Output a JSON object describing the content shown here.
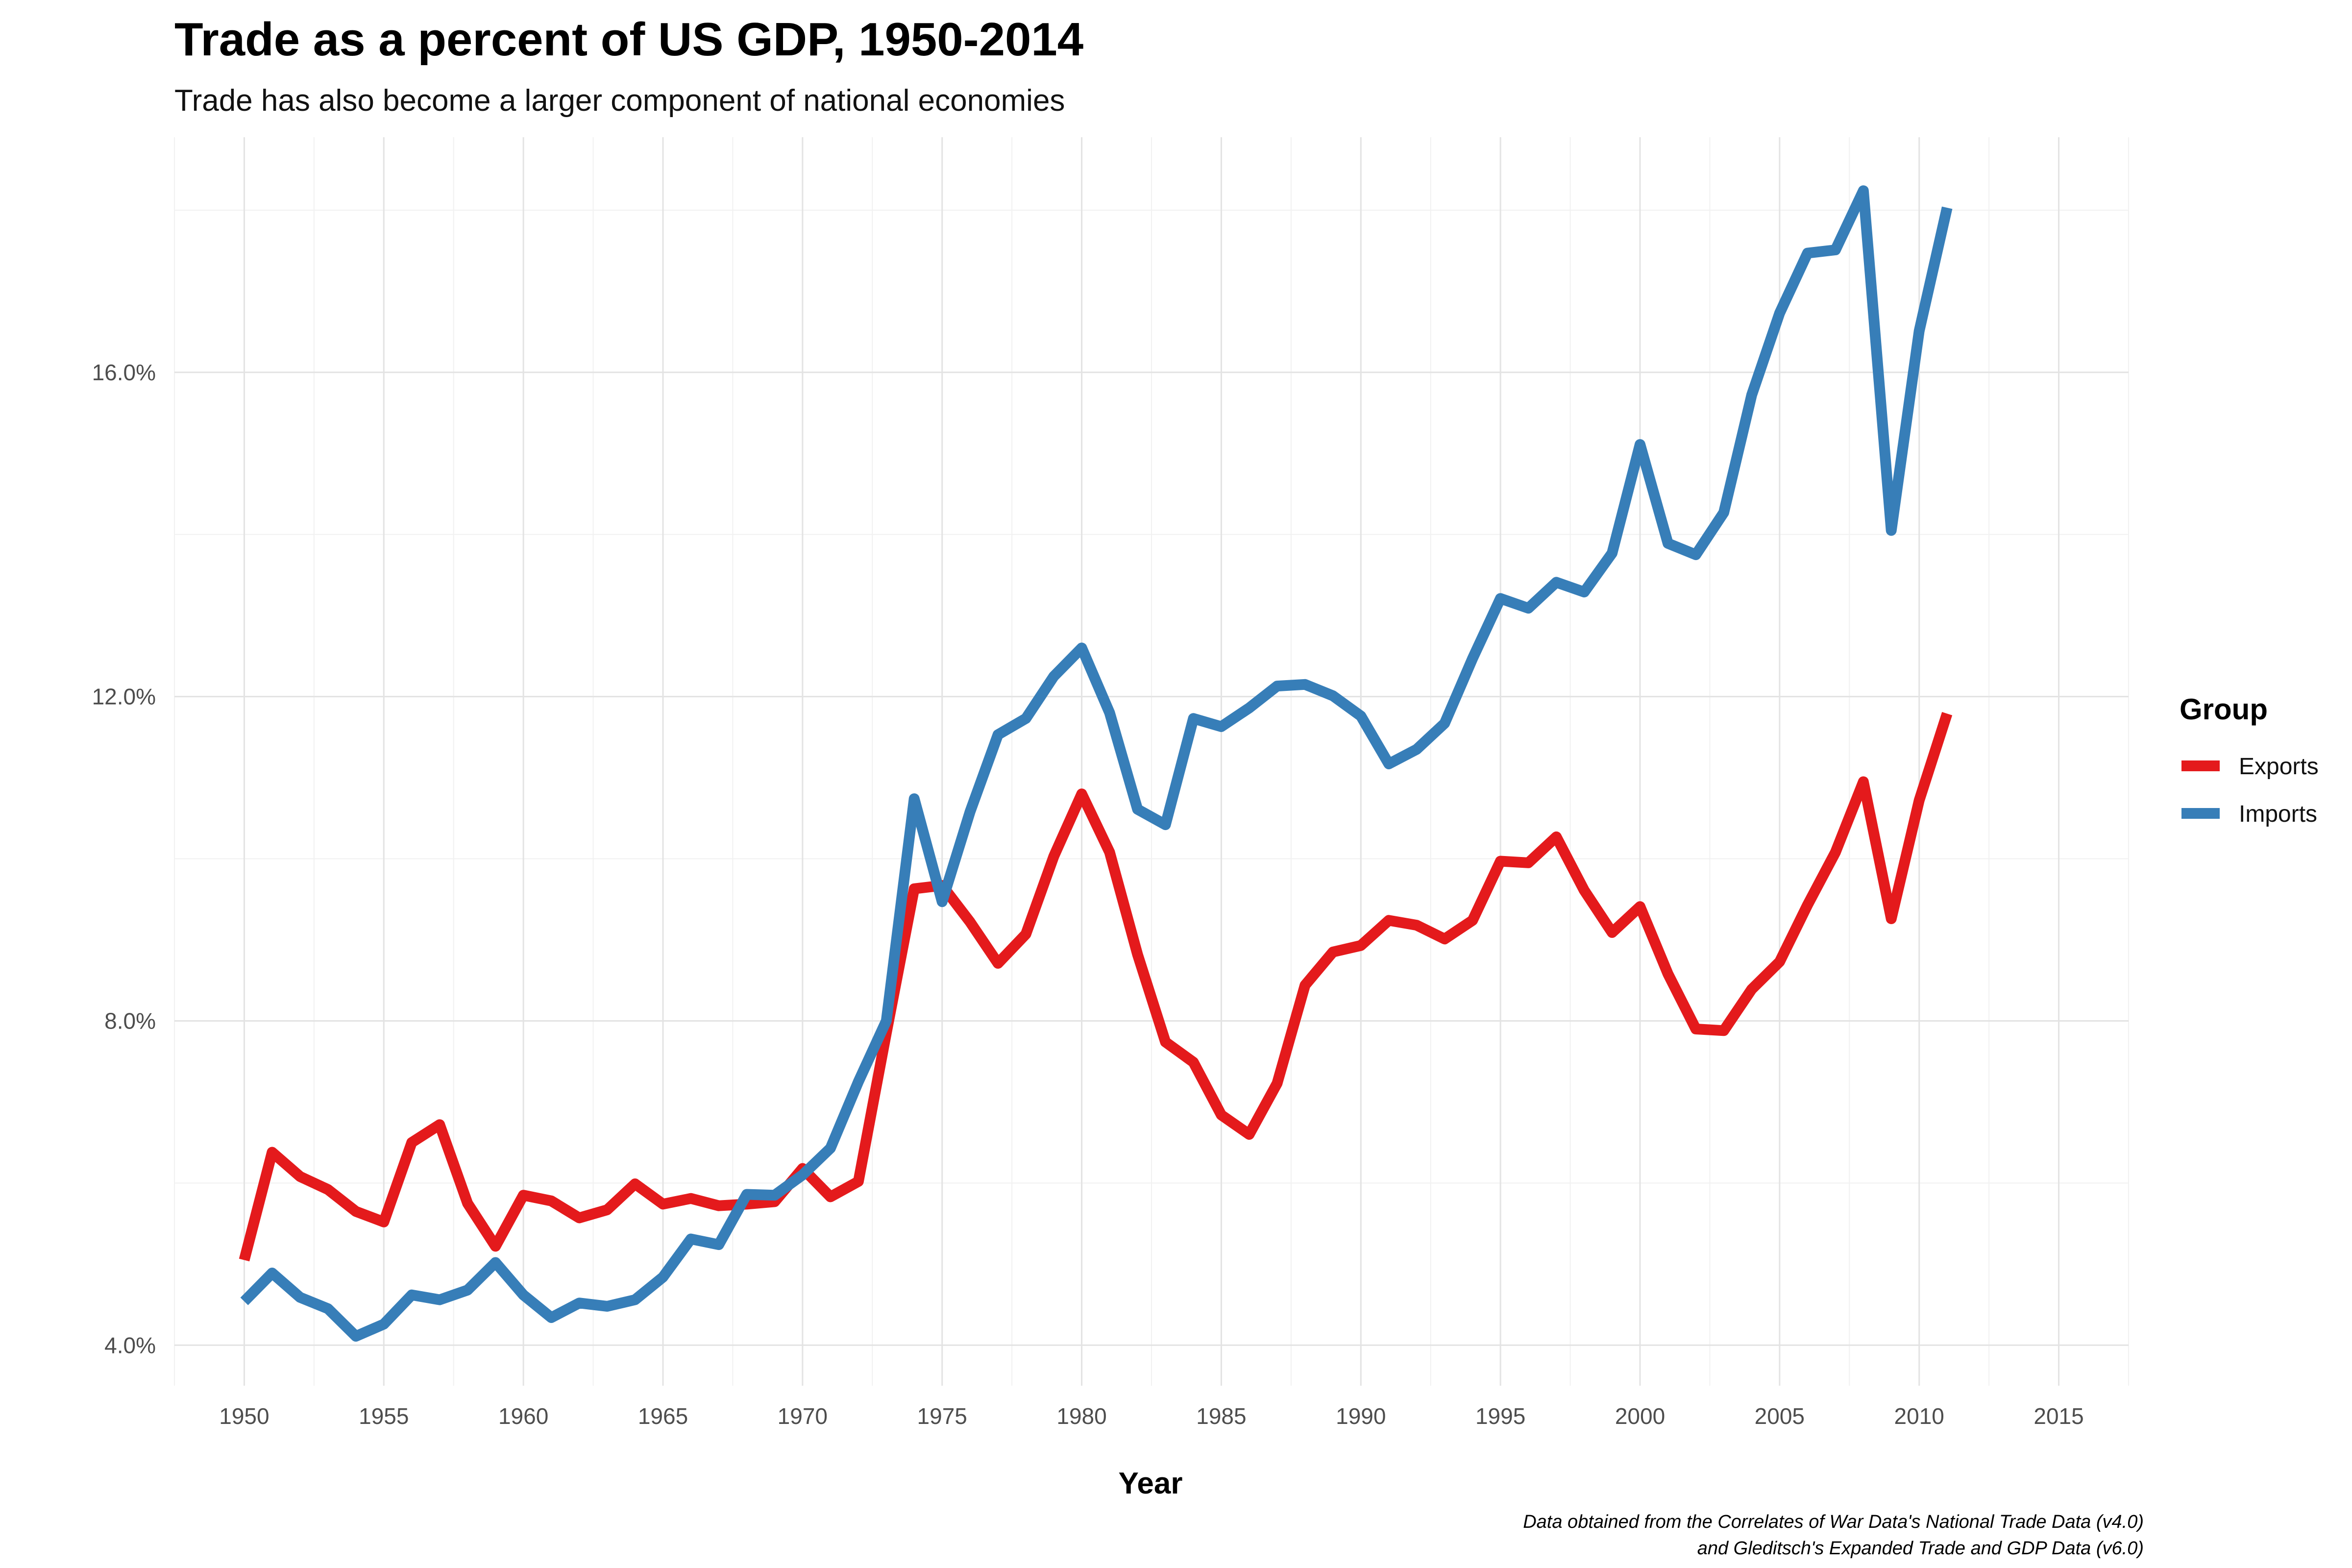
{
  "chart_data": {
    "type": "line",
    "title": "Trade as a percent of US GDP, 1950-2014",
    "subtitle": "Trade has also become a larger component of national economies",
    "xlabel": "Year",
    "ylabel": "",
    "xlim": [
      1947.5,
      2017.5
    ],
    "ylim": [
      3.5,
      18.9
    ],
    "x_ticks": [
      1950,
      1955,
      1960,
      1965,
      1970,
      1975,
      1980,
      1985,
      1990,
      1995,
      2000,
      2005,
      2010,
      2015
    ],
    "x_tick_labels": [
      "1950",
      "1955",
      "1960",
      "1965",
      "1970",
      "1975",
      "1980",
      "1985",
      "1990",
      "1995",
      "2000",
      "2005",
      "2010",
      "2015"
    ],
    "y_ticks": [
      4,
      8,
      12,
      16
    ],
    "y_tick_labels": [
      "4.0%",
      "8.0%",
      "12.0%",
      "16.0%"
    ],
    "grid": true,
    "legend": {
      "title": "Group",
      "placement": "right",
      "entries": [
        "Exports",
        "Imports"
      ]
    },
    "x": [
      1950,
      1951,
      1952,
      1953,
      1954,
      1955,
      1956,
      1957,
      1958,
      1959,
      1960,
      1961,
      1962,
      1963,
      1964,
      1965,
      1966,
      1967,
      1968,
      1969,
      1970,
      1971,
      1972,
      1973,
      1974,
      1975,
      1976,
      1977,
      1978,
      1979,
      1980,
      1981,
      1982,
      1983,
      1984,
      1985,
      1986,
      1987,
      1988,
      1989,
      1990,
      1991,
      1992,
      1993,
      1994,
      1995,
      1996,
      1997,
      1998,
      1999,
      2000,
      2001,
      2002,
      2003,
      2004,
      2005,
      2006,
      2007,
      2008,
      2009,
      2010,
      2011
    ],
    "series": [
      {
        "name": "Exports",
        "color": "#e41a1c",
        "values": [
          5.05,
          6.38,
          6.08,
          5.92,
          5.65,
          5.52,
          6.5,
          6.72,
          5.75,
          5.22,
          5.85,
          5.78,
          5.57,
          5.67,
          5.99,
          5.74,
          5.81,
          5.72,
          5.74,
          5.77,
          6.18,
          5.83,
          6.02,
          7.85,
          9.63,
          9.67,
          9.22,
          8.71,
          9.07,
          10.03,
          10.8,
          10.08,
          8.82,
          7.74,
          7.49,
          6.84,
          6.6,
          7.23,
          8.44,
          8.85,
          8.93,
          9.24,
          9.18,
          9.01,
          9.24,
          9.97,
          9.95,
          10.27,
          9.61,
          9.09,
          9.41,
          8.58,
          7.9,
          7.88,
          8.39,
          8.73,
          9.43,
          10.08,
          10.95,
          9.26,
          10.72,
          11.79
        ]
      },
      {
        "name": "Imports",
        "color": "#377eb8",
        "values": [
          4.54,
          4.89,
          4.59,
          4.45,
          4.11,
          4.26,
          4.62,
          4.56,
          4.68,
          5.02,
          4.62,
          4.34,
          4.52,
          4.48,
          4.56,
          4.84,
          5.31,
          5.24,
          5.86,
          5.85,
          6.1,
          6.43,
          7.25,
          8.0,
          10.74,
          9.47,
          10.58,
          11.53,
          11.73,
          12.25,
          12.6,
          11.8,
          10.61,
          10.42,
          11.73,
          11.63,
          11.86,
          12.13,
          12.15,
          12.01,
          11.76,
          11.17,
          11.35,
          11.67,
          12.47,
          13.21,
          13.09,
          13.41,
          13.29,
          13.77,
          15.11,
          13.89,
          13.75,
          14.27,
          15.72,
          16.73,
          17.47,
          17.51,
          18.24,
          14.05,
          16.51,
          18.03
        ]
      }
    ],
    "caption": [
      "Data obtained from the Correlates of War Data's National Trade Data (v4.0)",
      "and Gleditsch's Expanded Trade and GDP Data (v6.0)"
    ]
  }
}
